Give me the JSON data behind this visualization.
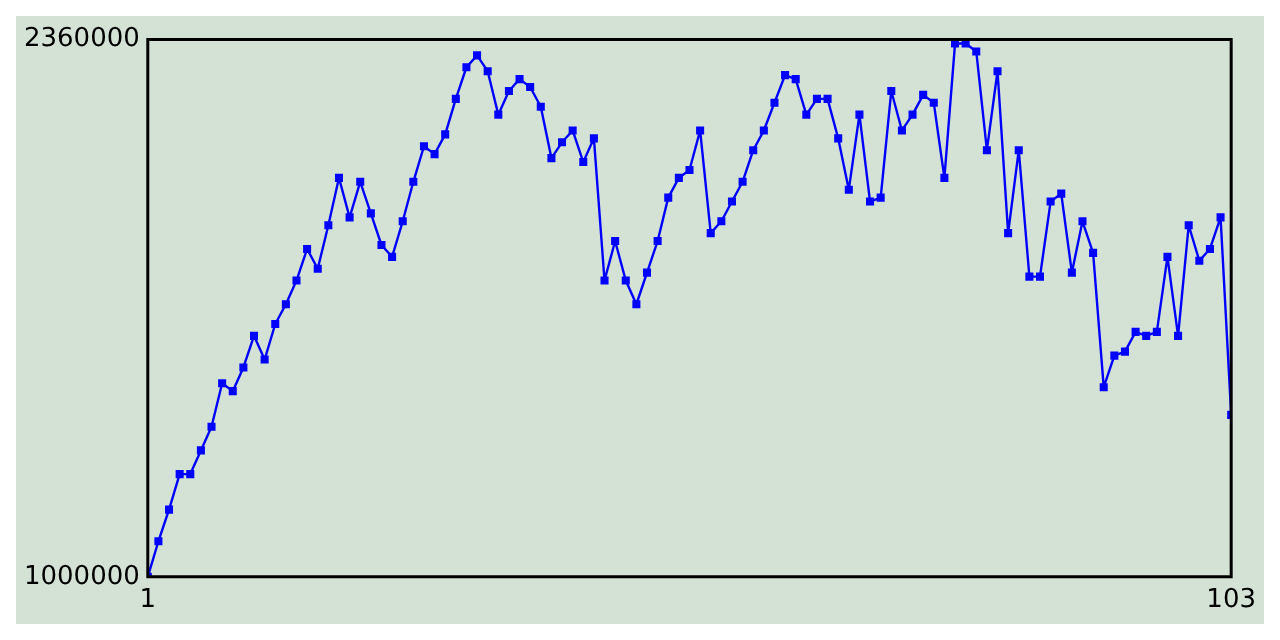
{
  "chart_data": {
    "type": "line",
    "x": [
      1,
      2,
      3,
      4,
      5,
      6,
      7,
      8,
      9,
      10,
      11,
      12,
      13,
      14,
      15,
      16,
      17,
      18,
      19,
      20,
      21,
      22,
      23,
      24,
      25,
      26,
      27,
      28,
      29,
      30,
      31,
      32,
      33,
      34,
      35,
      36,
      37,
      38,
      39,
      40,
      41,
      42,
      43,
      44,
      45,
      46,
      47,
      48,
      49,
      50,
      51,
      52,
      53,
      54,
      55,
      56,
      57,
      58,
      59,
      60,
      61,
      62,
      63,
      64,
      65,
      66,
      67,
      68,
      69,
      70,
      71,
      72,
      73,
      74,
      75,
      76,
      77,
      78,
      79,
      80,
      81,
      82,
      83,
      84,
      85,
      86,
      87,
      88,
      89,
      90,
      91,
      92,
      93,
      94,
      95,
      96,
      97,
      98,
      99,
      100,
      101,
      102,
      103
    ],
    "series": [
      {
        "color": "#0000ff",
        "values": [
          1000000,
          1090000,
          1170000,
          1260000,
          1260000,
          1320000,
          1380000,
          1490000,
          1470000,
          1530000,
          1610000,
          1550000,
          1640000,
          1690000,
          1750000,
          1830000,
          1780000,
          1890000,
          2010000,
          1910000,
          2000000,
          1920000,
          1840000,
          1810000,
          1900000,
          2000000,
          2090000,
          2070000,
          2120000,
          2210000,
          2290000,
          2320000,
          2280000,
          2170000,
          2230000,
          2260000,
          2240000,
          2190000,
          2060000,
          2100000,
          2130000,
          2050000,
          2110000,
          1750000,
          1850000,
          1750000,
          1690000,
          1770000,
          1850000,
          1960000,
          2010000,
          2030000,
          2130000,
          1870000,
          1900000,
          1950000,
          2000000,
          2080000,
          2130000,
          2200000,
          2270000,
          2260000,
          2170000,
          2210000,
          2210000,
          2110000,
          1980000,
          2170000,
          1950000,
          1960000,
          2230000,
          2130000,
          2170000,
          2220000,
          2200000,
          2010000,
          2350000,
          2350000,
          2330000,
          2080000,
          2280000,
          1870000,
          2080000,
          1760000,
          1760000,
          1950000,
          1970000,
          1770000,
          1900000,
          1820000,
          1480000,
          1560000,
          1570000,
          1620000,
          1610000,
          1620000,
          1810000,
          1610000,
          1890000,
          1800000,
          1830000,
          1910000,
          1410000
        ]
      }
    ],
    "xlim": [
      1,
      103
    ],
    "xticks": [
      1,
      103
    ],
    "ylim": [
      1000000,
      2360000
    ],
    "yticks": [
      1000000,
      2360000
    ],
    "marker": "square",
    "line_style": "solid"
  }
}
